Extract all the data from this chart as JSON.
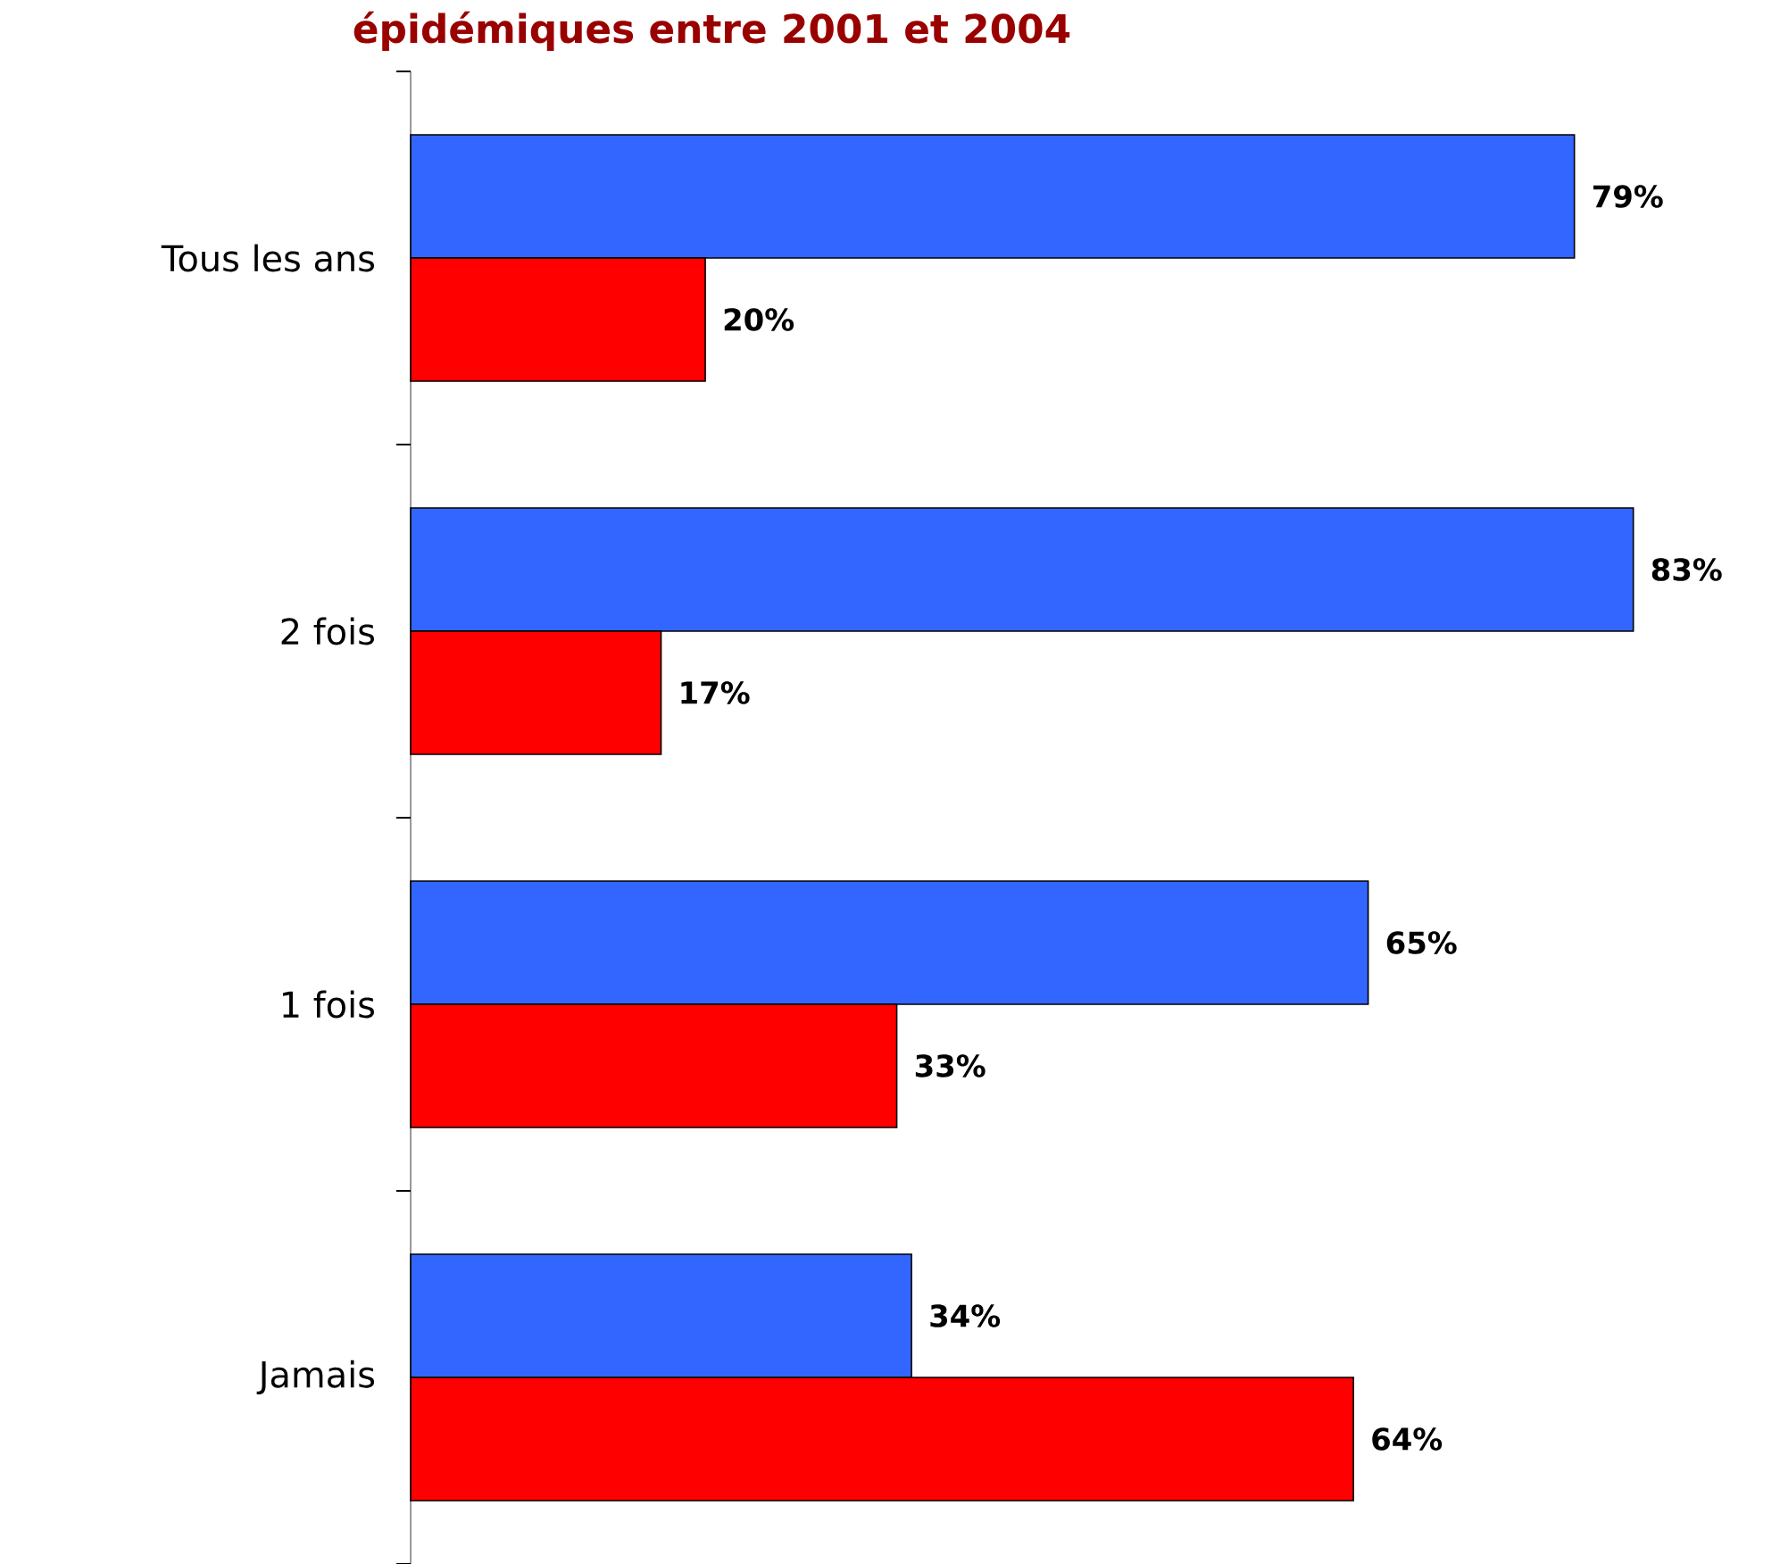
{
  "chart_data": {
    "type": "bar",
    "orientation": "horizontal",
    "title": "épidémiques entre 2001 et 2004",
    "tick_labels": "y",
    "categories": [
      "Tous les ans",
      "2 fois",
      "1 fois",
      "Jamais"
    ],
    "series": [
      {
        "color": "#3366ff",
        "values": [
          79,
          83,
          65,
          34
        ],
        "value_labels": [
          "79%",
          "83%",
          "65%",
          "34%"
        ]
      },
      {
        "color": "#ff0000",
        "values": [
          20,
          17,
          33,
          64
        ],
        "value_labels": [
          "20%",
          "17%",
          "33%",
          "64%"
        ]
      }
    ]
  }
}
